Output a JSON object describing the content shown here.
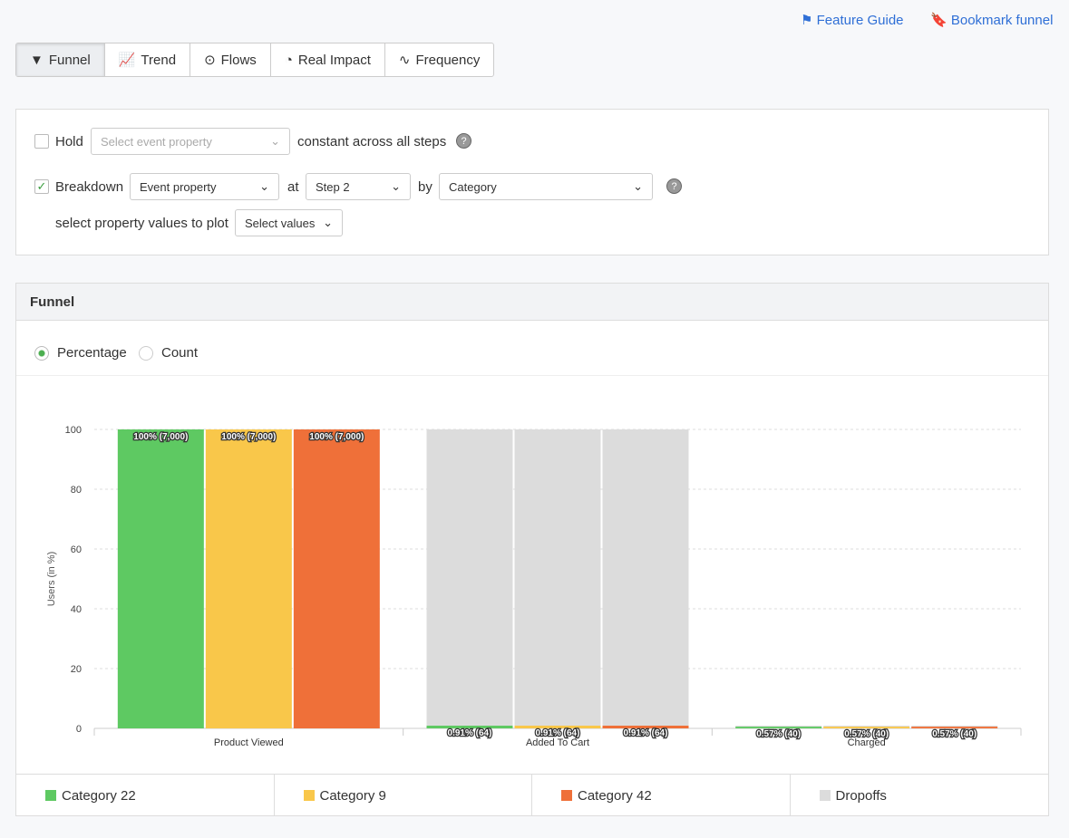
{
  "header": {
    "links": [
      "Feature Guide",
      "Bookmark funnel"
    ]
  },
  "tabs": [
    "Funnel",
    "Trend",
    "Flows",
    "Real Impact",
    "Frequency"
  ],
  "filters": {
    "hold": {
      "label": "Hold",
      "placeholder": "Select event property",
      "suffix": "constant across all steps",
      "checked": false
    },
    "breakdown": {
      "label": "Breakdown",
      "property": "Event property",
      "at": "at",
      "step": "Step 2",
      "by": "by",
      "field": "Category",
      "checked": true
    },
    "values": {
      "label": "select property values to plot",
      "button": "Select values"
    }
  },
  "funnel": {
    "title": "Funnel",
    "modes": [
      "Percentage",
      "Count"
    ],
    "selected": "Percentage"
  },
  "chart_data": {
    "type": "bar",
    "ylabel": "Users (in %)",
    "categories": [
      "Product Viewed",
      "Added To Cart",
      "Charged"
    ],
    "series": [
      {
        "name": "Category 22",
        "color": "#5ec962",
        "values": [
          100,
          0.91,
          0.57
        ],
        "value_labels": [
          "100% (7,000)",
          "0.91% (64)",
          "0.57% (40)"
        ]
      },
      {
        "name": "Category 9",
        "color": "#f9c74a",
        "values": [
          100,
          0.91,
          0.57
        ],
        "value_labels": [
          "100% (7,000)",
          "0.91% (64)",
          "0.57% (40)"
        ]
      },
      {
        "name": "Category 42",
        "color": "#ef7039",
        "values": [
          100,
          0.91,
          0.57
        ],
        "value_labels": [
          "100% (7,000)",
          "0.91% (64)",
          "0.57% (40)"
        ]
      },
      {
        "name": "Dropoffs",
        "color": "#dcdcdc",
        "values": [
          [
            0,
            0,
            0
          ],
          [
            99.09,
            99.09,
            99.09
          ],
          [
            0.34,
            0.34,
            0.34
          ]
        ]
      }
    ],
    "ylim": [
      0,
      100
    ],
    "yticks": [
      0,
      20,
      40,
      60,
      80,
      100
    ],
    "grid": true
  }
}
